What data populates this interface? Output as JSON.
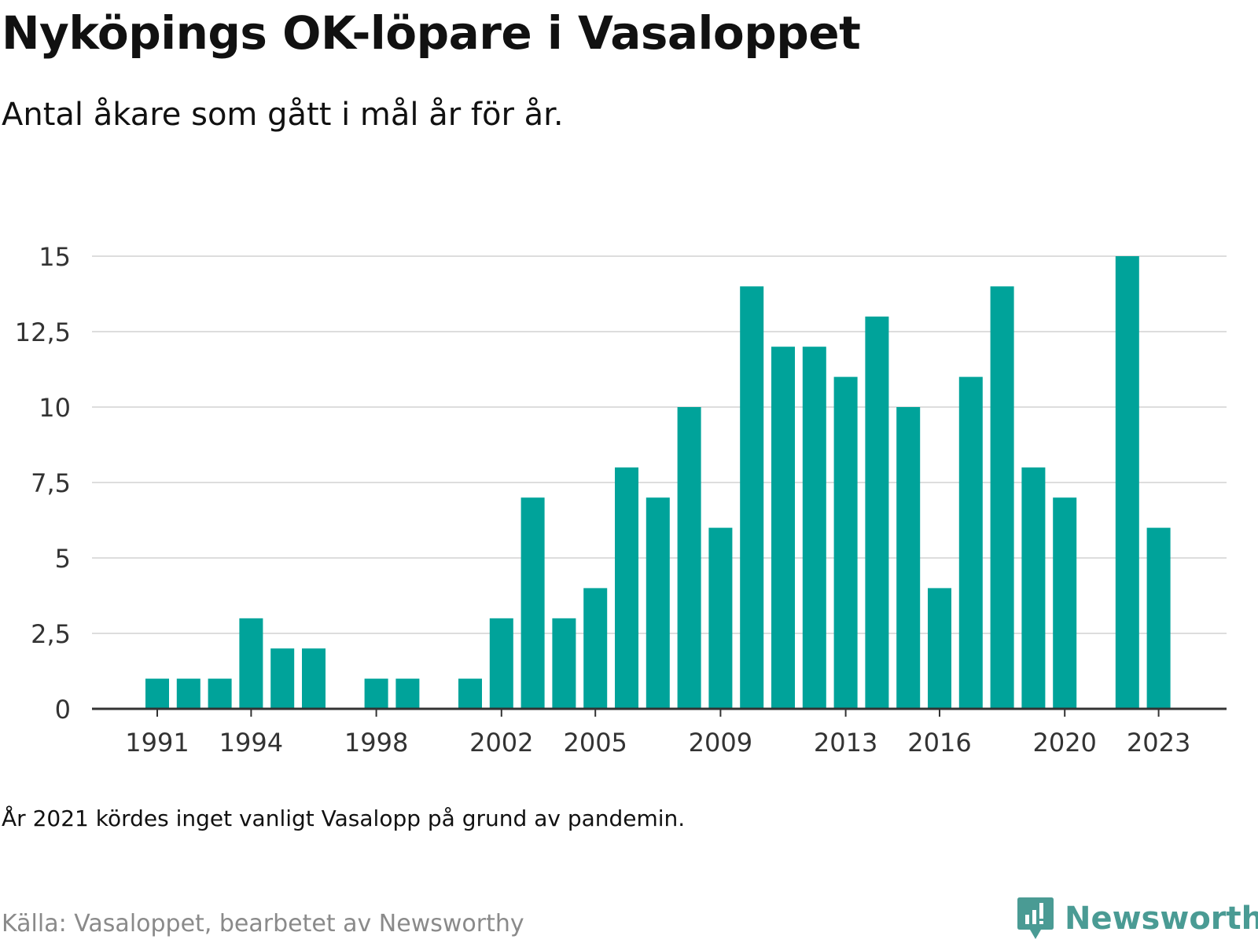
{
  "title": "Nyköpings OK-löpare i Vasaloppet",
  "subtitle": "Antal åkare som gått i mål år för år.",
  "note": "År 2021 kördes inget vanligt Vasalopp på grund av pandemin.",
  "source": "Källa: Vasaloppet, bearbetet av Newsworthy",
  "brand": {
    "name": "Newsworthy",
    "icon": "newsworthy-logo-icon",
    "color": "#4a9b94"
  },
  "colors": {
    "bar": "#00a39a",
    "grid": "#dddddd",
    "axis": "#333333",
    "tick_text": "#333333"
  },
  "chart_data": {
    "type": "bar",
    "title": "",
    "xlabel": "",
    "ylabel": "",
    "ylim": [
      0,
      15
    ],
    "y_ticks": [
      0,
      2.5,
      5,
      7.5,
      10,
      12.5,
      15
    ],
    "y_tick_labels": [
      "0",
      "2,5",
      "5",
      "7,5",
      "10",
      "12,5",
      "15"
    ],
    "x_tick_labels": [
      "1991",
      "1994",
      "1998",
      "2002",
      "2005",
      "2009",
      "2013",
      "2016",
      "2020",
      "2023"
    ],
    "grid": true,
    "categories": [
      "1991",
      "1992",
      "1993",
      "1994",
      "1995",
      "1996",
      "1997",
      "1998",
      "1999",
      "2000",
      "2001",
      "2002",
      "2003",
      "2004",
      "2005",
      "2006",
      "2007",
      "2008",
      "2009",
      "2010",
      "2011",
      "2012",
      "2013",
      "2014",
      "2015",
      "2016",
      "2017",
      "2018",
      "2019",
      "2020",
      "2021",
      "2022",
      "2023"
    ],
    "values": [
      1,
      1,
      1,
      3,
      2,
      2,
      0,
      1,
      1,
      0,
      1,
      3,
      7,
      3,
      4,
      8,
      7,
      10,
      6,
      14,
      12,
      12,
      11,
      13,
      10,
      4,
      11,
      14,
      8,
      7,
      0,
      15,
      6
    ]
  }
}
